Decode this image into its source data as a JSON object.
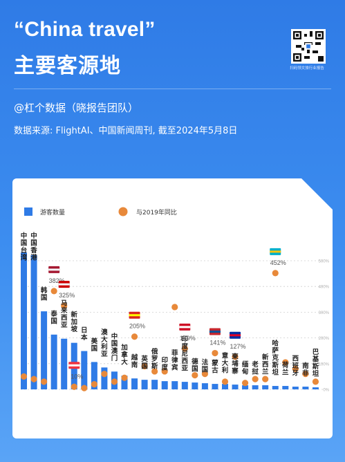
{
  "header": {
    "title_line1": "“China travel”",
    "title_line2": "主要客源地",
    "qr_caption": "扫码领文旅行业报告",
    "author": "@杠个数据（晓报告团队）",
    "source": "数据来源: FlightAI、中国新闻周刊, 截至2024年5月8日"
  },
  "colors": {
    "background": "#3d8ef0",
    "bar": "#2f7be6",
    "dot": "#e8893a",
    "card": "#ffffff"
  },
  "chart_data": {
    "type": "bar",
    "legend": [
      "游客数量",
      "与2019年同比"
    ],
    "legend_position": "top-left",
    "y2_ticks": [
      "0%",
      "100%",
      "200%",
      "300%",
      "400%",
      "500%"
    ],
    "y2_lim": [
      0,
      500
    ],
    "categories": [
      "中国台湾",
      "中国香港",
      "韩国",
      "泰国",
      "马来西亚",
      "新加坡",
      "日本",
      "美国",
      "澳大利亚",
      "中国澳门",
      "加拿大",
      "越南",
      "英国",
      "俄罗斯",
      "印度",
      "菲律宾",
      "印度尼西亚",
      "德国",
      "法国",
      "蒙古",
      "意大利",
      "柬埔寨",
      "缅甸",
      "老挝",
      "新西兰",
      "哈萨克斯坦",
      "荷兰",
      "西班牙",
      "南非",
      "巴基斯坦"
    ],
    "series": [
      {
        "name": "游客数量",
        "values": [
          100,
          98,
          57,
          40,
          37,
          34,
          28,
          20,
          16,
          13,
          10,
          8,
          7,
          7,
          6,
          6,
          5.5,
          5,
          4.5,
          4,
          4,
          3.5,
          3,
          3,
          3,
          2.5,
          2.5,
          2,
          2,
          1.5
        ]
      },
      {
        "name": "与2019年同比",
        "values": [
          50,
          40,
          30,
          382,
          325,
          10,
          5,
          20,
          60,
          30,
          45,
          205,
          90,
          70,
          70,
          320,
          159,
          55,
          60,
          141,
          30,
          127,
          25,
          40,
          40,
          452,
          105,
          80,
          60,
          30
        ]
      }
    ],
    "annotations": [
      "382%",
      "325%",
      "10%",
      "205%",
      "159%",
      "141%",
      "127%",
      "452%"
    ]
  }
}
